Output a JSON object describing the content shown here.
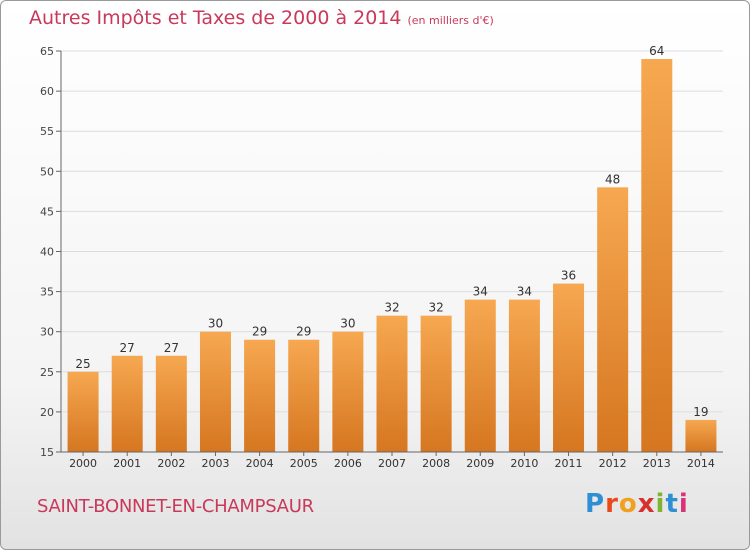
{
  "title": "Autres Impôts et Taxes de 2000 à 2014",
  "unit": "(en milliers d'€)",
  "commune": "SAINT-BONNET-EN-CHAMPSAUR",
  "logo": "Proxiti",
  "colors": {
    "title": "#c8395a",
    "bar_light": "#f6a851",
    "bar_dark": "#d67620",
    "grid": "#dcdcdc"
  },
  "chart_data": {
    "type": "bar",
    "title": "Autres Impôts et Taxes de 2000 à 2014",
    "xlabel": "",
    "ylabel": "",
    "categories": [
      "2000",
      "2001",
      "2002",
      "2003",
      "2004",
      "2005",
      "2006",
      "2007",
      "2008",
      "2009",
      "2010",
      "2011",
      "2012",
      "2013",
      "2014"
    ],
    "values": [
      25,
      27,
      27,
      30,
      29,
      29,
      30,
      32,
      32,
      34,
      34,
      36,
      48,
      64,
      19
    ],
    "ylim": [
      15,
      65
    ],
    "yticks": [
      15,
      20,
      25,
      30,
      35,
      40,
      45,
      50,
      55,
      60,
      65
    ],
    "grid": true
  }
}
